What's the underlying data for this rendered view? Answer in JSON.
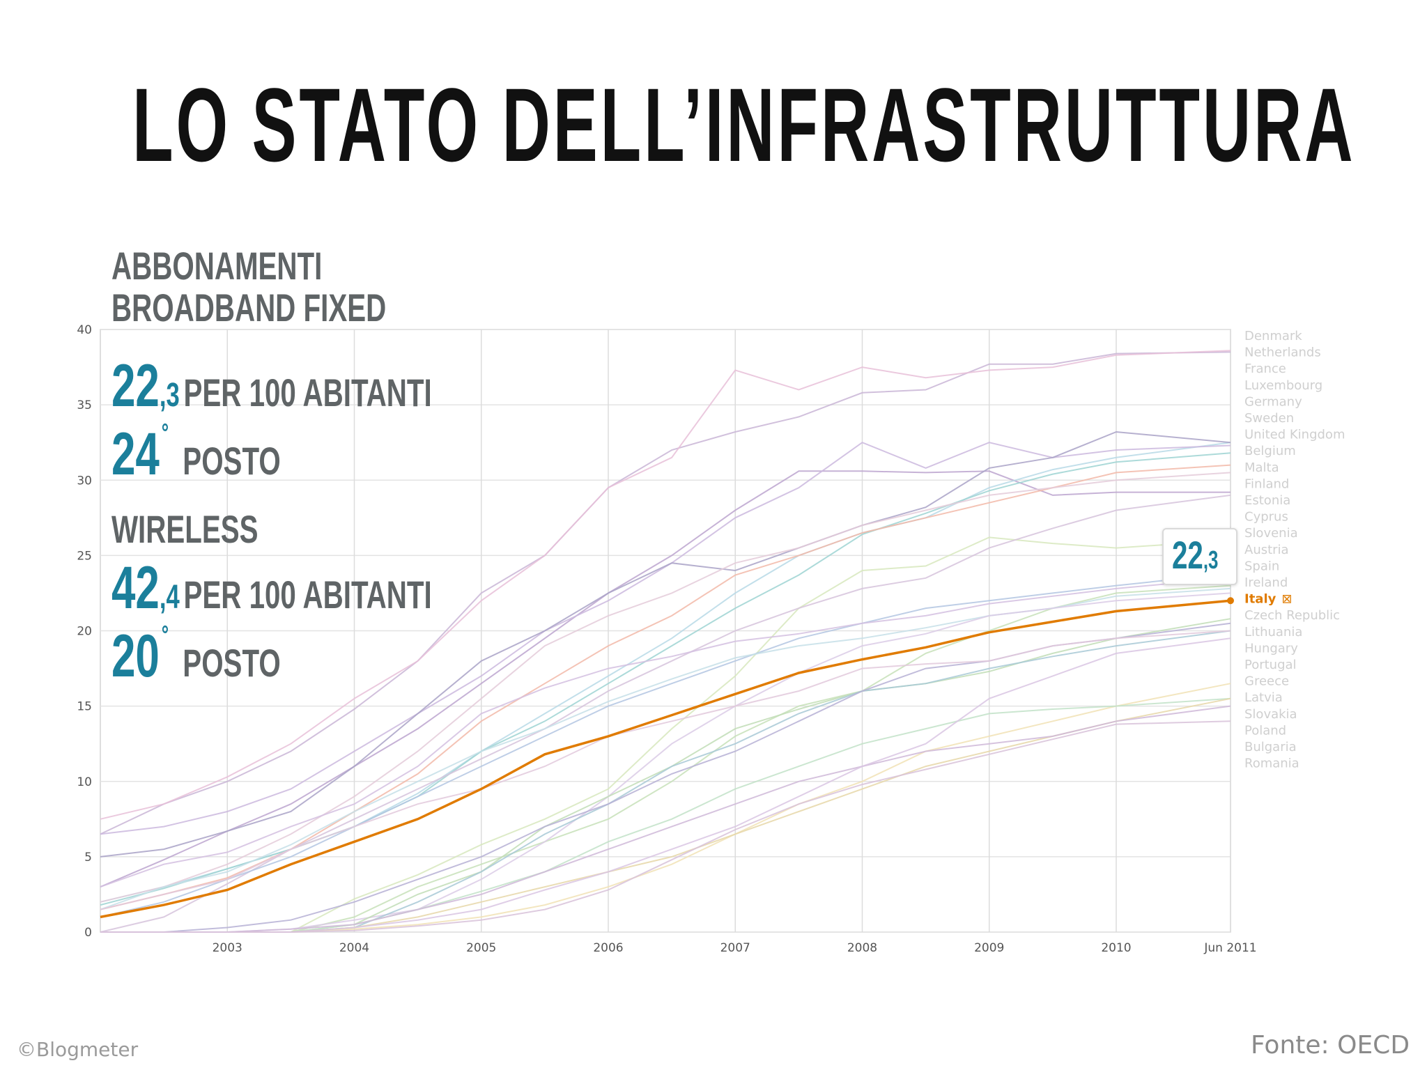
{
  "slide": {
    "title": "Lo stato dell’infrastruttura",
    "footer_left": "©Blogmeter",
    "footer_right": "Fonte: OECD"
  },
  "panel": {
    "fixed_label_1": "Abbonamenti",
    "fixed_label_2": "broadband fixed",
    "fixed_value_int": "22",
    "fixed_value_dec": ",3",
    "fixed_unit": "per 100 abitanti",
    "fixed_rank": "24",
    "rank_degree": "°",
    "rank_word": "posto",
    "wireless_label": "Wireless",
    "wireless_value_int": "42",
    "wireless_value_dec": ",4",
    "wireless_unit": "per 100 abitanti",
    "wireless_rank": "20"
  },
  "callout": {
    "int": "22",
    "dec": ",3"
  },
  "colors": {
    "accent_teal": "#1b7f9b",
    "italy_orange": "#e07b00",
    "label_gray": "#5f6466"
  },
  "chart_data": {
    "type": "line",
    "title": "",
    "xlabel": "",
    "ylabel": "",
    "ylim": [
      0,
      40
    ],
    "yticks": [
      0,
      5,
      10,
      15,
      20,
      25,
      30,
      35,
      40
    ],
    "x_tick_labels": [
      {
        "t": 2003,
        "label": "2003"
      },
      {
        "t": 2004,
        "label": "2004"
      },
      {
        "t": 2005,
        "label": "2005"
      },
      {
        "t": 2006,
        "label": "2006"
      },
      {
        "t": 2007,
        "label": "2007"
      },
      {
        "t": 2008,
        "label": "2008"
      },
      {
        "t": 2009,
        "label": "2009"
      },
      {
        "t": 2010,
        "label": "2010"
      },
      {
        "t": 2010.9,
        "label": "Jun 2011"
      }
    ],
    "xlim": [
      2002,
      2010.9
    ],
    "x": [
      2002,
      2002.5,
      2003,
      2003.5,
      2004,
      2004.5,
      2005,
      2005.5,
      2006,
      2006.5,
      2007,
      2007.5,
      2008,
      2008.5,
      2009,
      2009.5,
      2010,
      2010.9
    ],
    "highlight": "Italy",
    "highlight_marker": "⊠",
    "legend_position": "right",
    "series": [
      {
        "name": "Denmark",
        "color": "#c9b5d6",
        "values": [
          6.5,
          8.5,
          10,
          12,
          14.8,
          18,
          22.5,
          25,
          29.5,
          32,
          33.2,
          34.2,
          35.8,
          36,
          37.7,
          37.7,
          38.4,
          38.5
        ]
      },
      {
        "name": "Netherlands",
        "color": "#e8bfd8",
        "values": [
          7.5,
          8.5,
          10.3,
          12.5,
          15.5,
          18,
          22,
          25,
          29.5,
          31.5,
          37.3,
          36,
          37.5,
          36.8,
          37.3,
          37.5,
          38.3,
          38.6
        ]
      },
      {
        "name": "France",
        "color": "#bca5cf",
        "values": [
          3,
          4.8,
          6.7,
          8.5,
          11,
          13.5,
          16.5,
          19.5,
          22.5,
          25,
          28,
          30.6,
          30.6,
          30.5,
          30.6,
          29,
          29.2,
          29.2
        ]
      },
      {
        "name": "Luxembourg",
        "color": "#b7d9e6",
        "values": [
          2,
          3,
          4.2,
          5.5,
          7,
          9.2,
          12,
          14.5,
          17,
          19.5,
          22.5,
          25,
          26.5,
          27.5,
          29.5,
          30.7,
          31.5,
          32.5
        ]
      },
      {
        "name": "Germany",
        "color": "#9ed4d2",
        "values": [
          1.8,
          2.9,
          4.2,
          5.5,
          7,
          9,
          12,
          14,
          16.5,
          19,
          21.5,
          23.7,
          26.4,
          27.8,
          29.3,
          30.4,
          31.2,
          31.8
        ]
      },
      {
        "name": "Sweden",
        "color": "#cbb8de",
        "values": [
          6.5,
          7,
          8,
          9.5,
          12,
          14.5,
          17,
          20,
          22,
          24.5,
          27.5,
          29.5,
          32.5,
          30.8,
          32.5,
          31.5,
          32,
          32.3
        ]
      },
      {
        "name": "United Kingdom",
        "color": "#f2b9a8",
        "values": [
          1.5,
          2.5,
          3.6,
          5.5,
          8,
          10.5,
          14,
          16.5,
          19,
          21,
          23.7,
          25,
          26.5,
          27.5,
          28.5,
          29.5,
          30.5,
          31
        ]
      },
      {
        "name": "Belgium",
        "color": "#a9a2c7",
        "values": [
          5,
          5.5,
          6.7,
          8,
          11,
          14.5,
          18,
          20,
          22.5,
          24.5,
          24,
          25.5,
          27,
          28.2,
          30.8,
          31.5,
          33.2,
          32.5
        ]
      },
      {
        "name": "Malta",
        "color": "#d7e7bd",
        "values": [
          0,
          0,
          0,
          0,
          2.2,
          3.8,
          5.8,
          7.5,
          9.5,
          13.5,
          17,
          21.5,
          24,
          24.3,
          26.2,
          25.8,
          25.5,
          26
        ]
      },
      {
        "name": "Finland",
        "color": "#e4cbd9",
        "values": [
          2,
          3,
          4.5,
          6.5,
          9,
          12,
          15.5,
          19,
          21,
          22.5,
          24.5,
          25.5,
          27,
          28,
          29,
          29.5,
          30,
          30.5
        ]
      },
      {
        "name": "Estonia",
        "color": "#d6c3dc",
        "values": [
          0,
          1,
          3.2,
          5.5,
          7.5,
          9.5,
          11.5,
          13.5,
          16,
          18,
          20,
          21.5,
          22.8,
          23.5,
          25.5,
          26.8,
          28,
          29
        ]
      },
      {
        "name": "Cyprus",
        "color": "#c7e1b8",
        "values": [
          0,
          0,
          0,
          0,
          1,
          3,
          4.5,
          6,
          7.5,
          10,
          13,
          15,
          16,
          18.5,
          20,
          21.5,
          22.5,
          23
        ]
      },
      {
        "name": "Slovenia",
        "color": "#b3c6e2",
        "values": [
          1,
          2,
          3.5,
          5,
          7,
          9,
          11,
          13,
          15,
          16.5,
          18,
          19.5,
          20.5,
          21.5,
          22,
          22.5,
          23,
          23.8
        ]
      },
      {
        "name": "Austria",
        "color": "#d3bfe0",
        "values": [
          3,
          4.5,
          5.3,
          7,
          8.5,
          11,
          14.5,
          16.2,
          17.5,
          18.3,
          19.3,
          19.8,
          20.5,
          21,
          21.8,
          22.3,
          22.8,
          23.5
        ]
      },
      {
        "name": "Spain",
        "color": "#c6dfe7",
        "values": [
          1.5,
          3,
          4,
          5.8,
          8,
          10,
          12,
          13.5,
          15.3,
          16.8,
          18.2,
          19,
          19.5,
          20.2,
          21,
          21.5,
          22.3,
          22.8
        ]
      },
      {
        "name": "Ireland",
        "color": "#dacbe6",
        "values": [
          0,
          0,
          0,
          0.2,
          0.8,
          1.5,
          3.5,
          6,
          9,
          12.5,
          15,
          17.2,
          19,
          19.8,
          21,
          21.5,
          22,
          22.5
        ]
      },
      {
        "name": "Italy",
        "color": "#e07b00",
        "highlight": true,
        "values": [
          1,
          1.8,
          2.8,
          4.5,
          6,
          7.5,
          9.5,
          11.8,
          13,
          14.4,
          15.8,
          17.2,
          18.1,
          18.9,
          19.9,
          20.6,
          21.3,
          22
        ]
      },
      {
        "name": "Czech Republic",
        "color": "#c1ddb6",
        "values": [
          0,
          0,
          0,
          0,
          0.5,
          2.5,
          4,
          7,
          9,
          11,
          13.5,
          14.8,
          16,
          16.5,
          17.3,
          18.5,
          19.5,
          20.8
        ]
      },
      {
        "name": "Lithuania",
        "color": "#a8c9d6",
        "values": [
          0,
          0,
          0,
          0,
          0.3,
          2,
          4,
          6.5,
          8.5,
          11,
          12.5,
          14.5,
          16,
          16.5,
          17.5,
          18.3,
          19,
          20
        ]
      },
      {
        "name": "Hungary",
        "color": "#b6b0d5",
        "values": [
          0,
          0,
          0.3,
          0.8,
          2,
          3.5,
          5,
          7,
          8.5,
          10.5,
          12,
          14,
          16,
          17.5,
          18,
          19,
          19.5,
          20.5
        ]
      },
      {
        "name": "Portugal",
        "color": "#e2c9dc",
        "values": [
          1.5,
          2.5,
          3.5,
          5.5,
          7,
          8.5,
          9.5,
          11,
          13,
          14,
          15,
          16,
          17.5,
          17.8,
          18,
          19,
          19.5,
          20
        ]
      },
      {
        "name": "Greece",
        "color": "#f1e2b5",
        "values": [
          0,
          0,
          0,
          0,
          0.2,
          0.5,
          1,
          1.8,
          3,
          4.5,
          6.5,
          8.5,
          10,
          12,
          13,
          14,
          15,
          16.5
        ]
      },
      {
        "name": "Latvia",
        "color": "#c2e2c8",
        "values": [
          0,
          0,
          0,
          0,
          0.5,
          1.5,
          2.7,
          4,
          6,
          7.5,
          9.5,
          11,
          12.5,
          13.5,
          14.5,
          14.8,
          15,
          15.5
        ]
      },
      {
        "name": "Slovakia",
        "color": "#e6d7a8",
        "values": [
          0,
          0,
          0,
          0,
          0.3,
          1,
          2,
          3,
          4,
          5,
          6.5,
          8,
          9.5,
          11,
          12,
          13,
          14,
          15.5
        ]
      },
      {
        "name": "Poland",
        "color": "#cfb9d8",
        "values": [
          0,
          0,
          0,
          0.2,
          0.5,
          1.5,
          2.5,
          4,
          5.5,
          7,
          8.5,
          10,
          11,
          12,
          12.5,
          13,
          14,
          15
        ]
      },
      {
        "name": "Bulgaria",
        "color": "#d9c6e3",
        "values": [
          0,
          0,
          0,
          0,
          0.3,
          0.8,
          1.5,
          2.8,
          4,
          5.5,
          7,
          9,
          11,
          12.5,
          15.5,
          17,
          18.5,
          19.5
        ]
      },
      {
        "name": "Romania",
        "color": "#d8c2d9",
        "values": [
          0,
          0,
          0,
          0,
          0.1,
          0.4,
          0.8,
          1.5,
          2.8,
          4.8,
          6.8,
          8.5,
          9.8,
          10.8,
          11.8,
          12.8,
          13.8,
          14
        ]
      }
    ]
  }
}
